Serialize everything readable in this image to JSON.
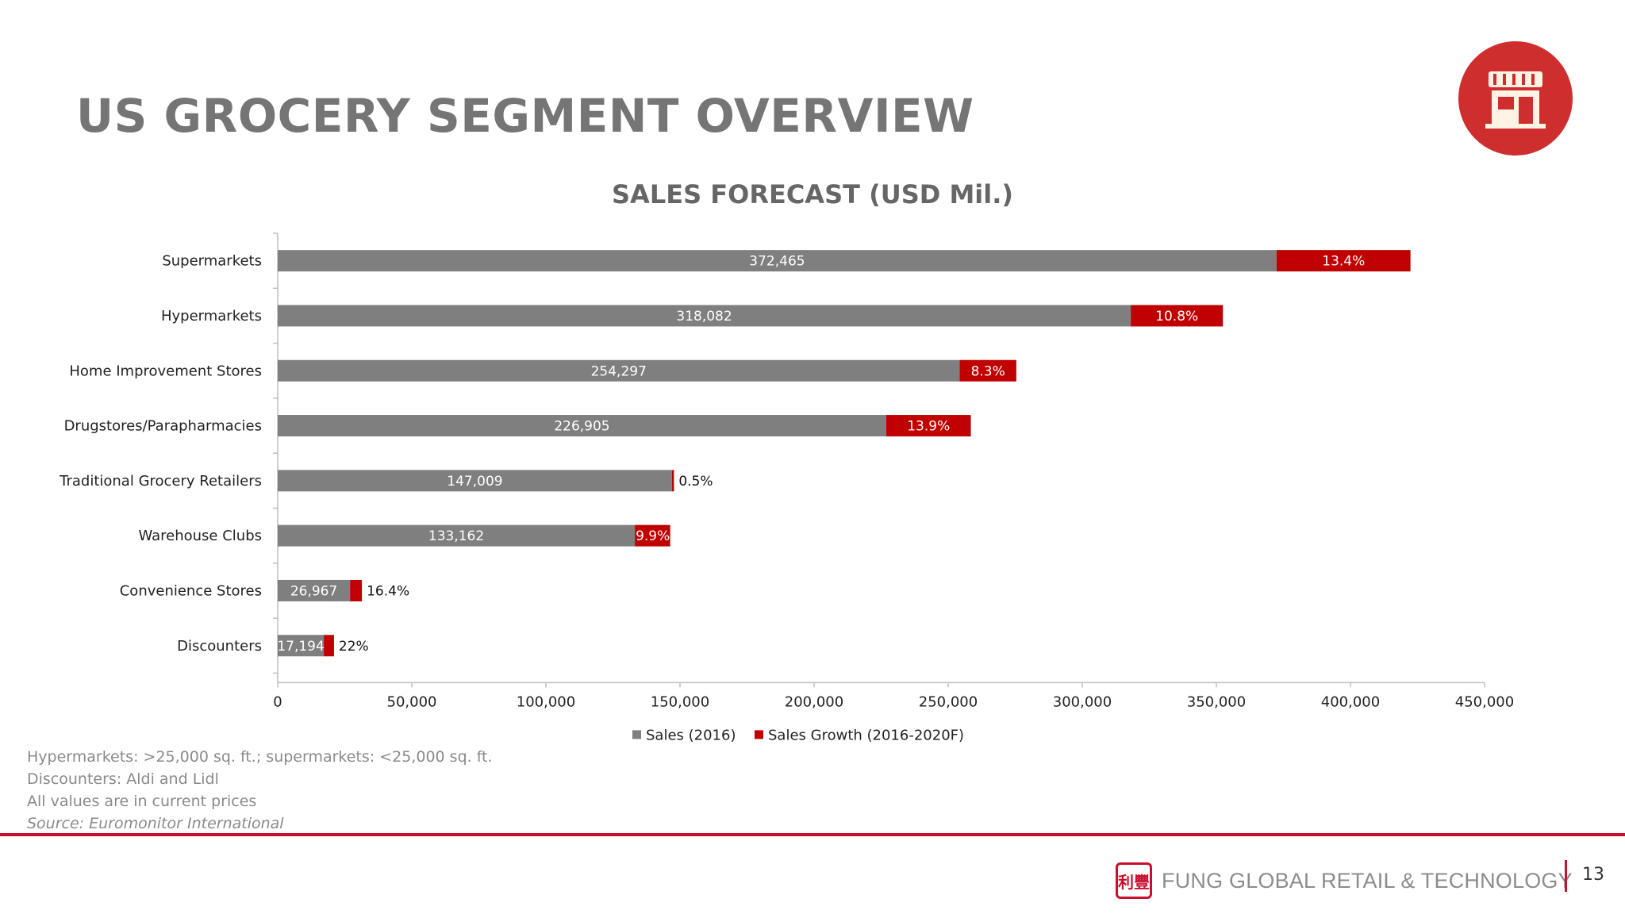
{
  "page": {
    "title": "US GROCERY SEGMENT OVERVIEW",
    "page_number": "13",
    "icon": "store-icon"
  },
  "notes": {
    "line1": "Hypermarkets: >25,000 sq. ft.; supermarkets: <25,000 sq. ft.",
    "line2": "Discounters: Aldi and Lidl",
    "line3": "All values are in current prices",
    "source": "Source: Euromonitor International"
  },
  "footer": {
    "logo_text": "FUNG GLOBAL RETAIL & TECHNOLOGY",
    "logo_mark_text": "利豐"
  },
  "colors": {
    "sales": "#7f7f7f",
    "growth": "#c00000",
    "badge": "#cf2e2e",
    "rule": "#c8102e"
  },
  "chart_data": {
    "type": "bar",
    "orientation": "horizontal",
    "stacked": true,
    "title": "SALES FORECAST (USD Mil.)",
    "categories": [
      "Supermarkets",
      "Hypermarkets",
      "Home Improvement Stores",
      "Drugstores/Parapharmacies",
      "Traditional Grocery Retailers",
      "Warehouse Clubs",
      "Convenience Stores",
      "Discounters"
    ],
    "series": [
      {
        "name": "Sales (2016)",
        "values": [
          372465,
          318082,
          254297,
          226905,
          147009,
          133162,
          26967,
          17194
        ],
        "labels": [
          "372,465",
          "318,082",
          "254,297",
          "226,905",
          "147,009",
          "133,162",
          "26,967",
          "17,194"
        ]
      },
      {
        "name": "Sales Growth (2016-2020F)",
        "values": [
          49910,
          34353,
          21107,
          31540,
          735,
          13183,
          4423,
          3783
        ],
        "labels": [
          "13.4%",
          "10.8%",
          "8.3%",
          "13.9%",
          "0.5%",
          "9.9%",
          "16.4%",
          "22%"
        ]
      }
    ],
    "xlim": [
      0,
      450000
    ],
    "xticks": [
      "0",
      "50,000",
      "100,000",
      "150,000",
      "200,000",
      "250,000",
      "300,000",
      "350,000",
      "400,000",
      "450,000"
    ],
    "legend_position": "bottom",
    "grid": false
  }
}
